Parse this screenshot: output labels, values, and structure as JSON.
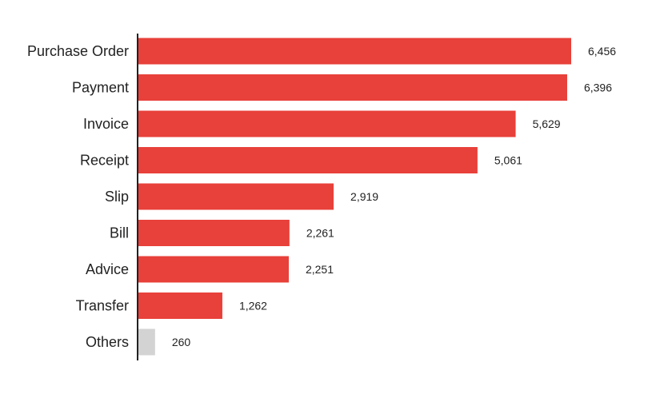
{
  "chart_data": {
    "type": "bar",
    "orientation": "horizontal",
    "title": "",
    "xlabel": "",
    "ylabel": "",
    "categories": [
      "Purchase Order",
      "Payment",
      "Invoice",
      "Receipt",
      "Slip",
      "Bill",
      "Advice",
      "Transfer",
      "Others"
    ],
    "values": [
      6456,
      6396,
      5629,
      5061,
      2919,
      2261,
      2251,
      1262,
      260
    ],
    "value_labels": [
      "6,456",
      "6,396",
      "5,629",
      "5,061",
      "2,919",
      "2,261",
      "2,251",
      "1,262",
      "260"
    ],
    "xlim": [
      0,
      6456
    ],
    "grid": false,
    "colors": {
      "bar": "#e8403a",
      "others_bar": "#d3d3d3",
      "axis": "#222222"
    },
    "highlight_muted_category": "Others"
  }
}
